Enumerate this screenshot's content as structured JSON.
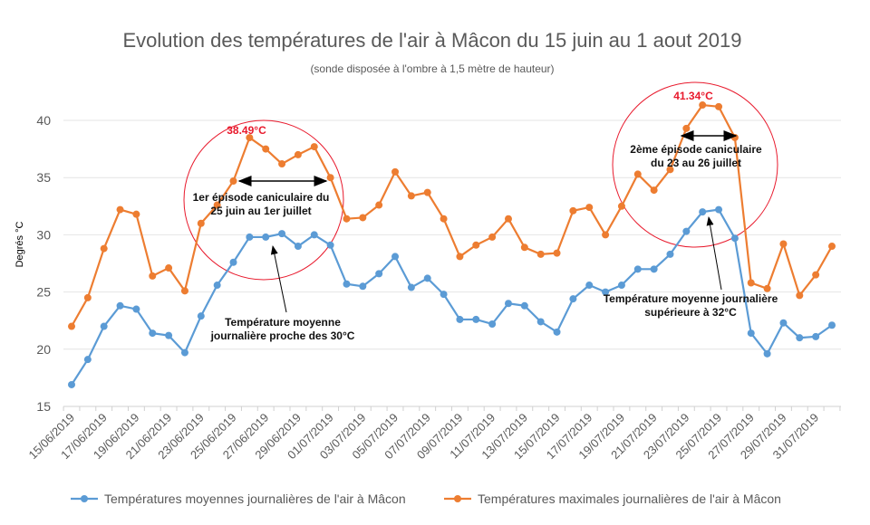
{
  "chart_data": {
    "type": "line",
    "title": "Evolution des températures de l'air à Mâcon du 15 juin au 1 aout 2019",
    "subtitle": "(sonde disposée à l'ombre à 1,5 mètre de hauteur)",
    "xlabel": "",
    "ylabel": "Degrés °C",
    "ylim": [
      15,
      42
    ],
    "yticks": [
      15,
      20,
      25,
      30,
      35,
      40
    ],
    "grid": "horizontal",
    "legend": "bottom",
    "x": [
      "15/06/2019",
      "16/06/2019",
      "17/06/2019",
      "18/06/2019",
      "19/06/2019",
      "20/06/2019",
      "21/06/2019",
      "22/06/2019",
      "23/06/2019",
      "24/06/2019",
      "25/06/2019",
      "26/06/2019",
      "27/06/2019",
      "28/06/2019",
      "29/06/2019",
      "30/06/2019",
      "01/07/2019",
      "02/07/2019",
      "03/07/2019",
      "04/07/2019",
      "05/07/2019",
      "06/07/2019",
      "07/07/2019",
      "08/07/2019",
      "09/07/2019",
      "10/07/2019",
      "11/07/2019",
      "12/07/2019",
      "13/07/2019",
      "14/07/2019",
      "15/07/2019",
      "16/07/2019",
      "17/07/2019",
      "18/07/2019",
      "19/07/2019",
      "20/07/2019",
      "21/07/2019",
      "22/07/2019",
      "23/07/2019",
      "24/07/2019",
      "25/07/2019",
      "26/07/2019",
      "27/07/2019",
      "28/07/2019",
      "29/07/2019",
      "30/07/2019",
      "31/07/2019",
      "01/08/2019"
    ],
    "xtick_labels": [
      "15/06/2019",
      "17/06/2019",
      "19/06/2019",
      "21/06/2019",
      "23/06/2019",
      "25/06/2019",
      "27/06/2019",
      "29/06/2019",
      "01/07/2019",
      "03/07/2019",
      "05/07/2019",
      "07/07/2019",
      "09/07/2019",
      "11/07/2019",
      "13/07/2019",
      "15/07/2019",
      "17/07/2019",
      "19/07/2019",
      "21/07/2019",
      "23/07/2019",
      "25/07/2019",
      "27/07/2019",
      "29/07/2019",
      "31/07/2019"
    ],
    "series": [
      {
        "name": "Températures moyennes journalières de l'air à Mâcon",
        "color": "#5b9bd5",
        "values": [
          16.9,
          19.1,
          22.0,
          23.8,
          23.5,
          21.4,
          21.2,
          19.7,
          22.9,
          25.6,
          27.6,
          29.8,
          29.8,
          30.1,
          29.0,
          30.0,
          29.1,
          25.7,
          25.5,
          26.6,
          28.1,
          25.4,
          26.2,
          24.8,
          22.6,
          22.6,
          22.2,
          24.0,
          23.8,
          22.4,
          21.5,
          24.4,
          25.6,
          25.0,
          25.6,
          27.0,
          27.0,
          28.3,
          30.3,
          32.0,
          32.2,
          29.7,
          21.4,
          19.6,
          22.3,
          21.0,
          21.1,
          22.1
        ]
      },
      {
        "name": "Températures maximales journalières de l'air à Mâcon",
        "color": "#ed7d31",
        "values": [
          22.0,
          24.5,
          28.8,
          32.2,
          31.8,
          26.4,
          27.1,
          25.1,
          31.0,
          32.6,
          34.7,
          38.49,
          37.5,
          36.2,
          37.0,
          37.7,
          35.0,
          31.4,
          31.5,
          32.6,
          35.5,
          33.4,
          33.7,
          31.4,
          28.1,
          29.1,
          29.8,
          31.4,
          28.9,
          28.3,
          28.4,
          32.1,
          32.4,
          30.0,
          32.5,
          35.3,
          33.9,
          35.7,
          39.3,
          41.34,
          41.2,
          38.5,
          25.8,
          25.3,
          29.2,
          24.7,
          26.5,
          29.0
        ]
      }
    ],
    "annotations": {
      "peak1": "38.49°C",
      "peak2": "41.34°C",
      "episode1_line1": "1er épisode caniculaire du",
      "episode1_line2": "25 juin au 1er juillet",
      "episode2_line1": "2ème épisode caniculaire",
      "episode2_line2": "du 23 au 26 juillet",
      "mean1_line1": "Température moyenne",
      "mean1_line2": "journalière proche des 30°C",
      "mean2_line1": "Température moyenne journalière",
      "mean2_line2": "supérieure à 32°C",
      "highlight_color": "#e8192c"
    }
  }
}
